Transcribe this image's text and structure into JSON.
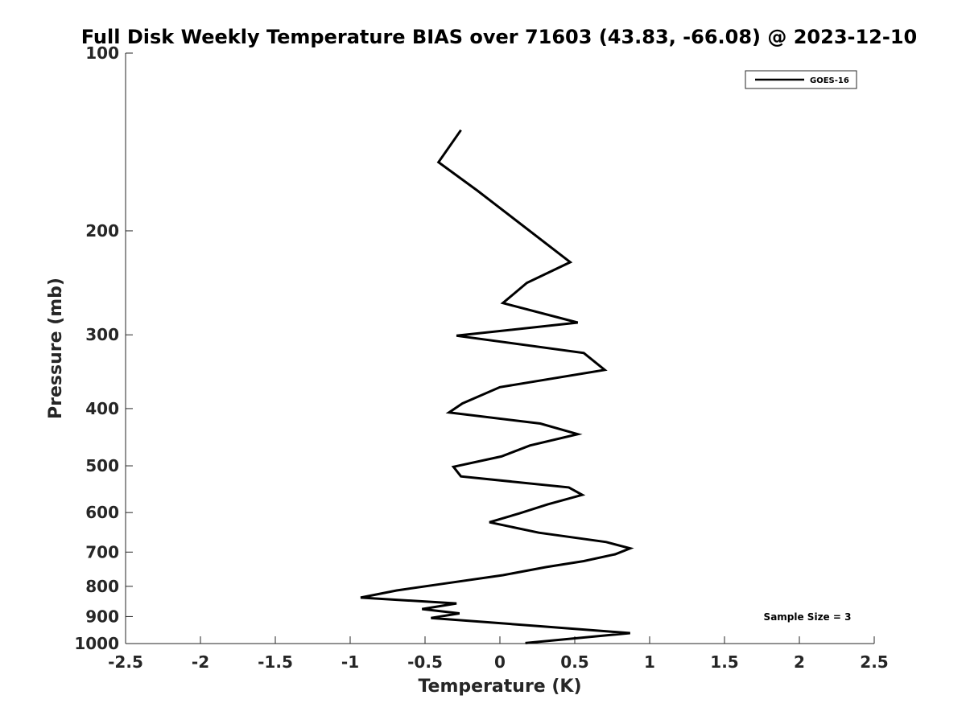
{
  "chart_data": {
    "type": "line",
    "title": "Full Disk Weekly Temperature BIAS over 71603 (43.83, -66.08) @ 2023-12-10",
    "xlabel": "Temperature (K)",
    "ylabel": "Pressure (mb)",
    "xlim": [
      -2.5,
      2.5
    ],
    "ylim": [
      100,
      1000
    ],
    "y_scale": "log",
    "y_direction": "reversed",
    "grid": false,
    "legend_position": "top-right",
    "x_ticks": [
      -2.5,
      -2,
      -1.5,
      -1,
      -0.5,
      0,
      0.5,
      1,
      1.5,
      2,
      2.5
    ],
    "x_tick_labels": [
      "-2.5",
      "-2",
      "-1.5",
      "-1",
      "-0.5",
      "0",
      "0.5",
      "1",
      "1.5",
      "2",
      "2.5"
    ],
    "y_ticks": [
      100,
      200,
      300,
      400,
      500,
      600,
      700,
      800,
      900,
      1000
    ],
    "y_tick_labels": [
      "100",
      "200",
      "300",
      "400",
      "500",
      "600",
      "700",
      "800",
      "900",
      "1000"
    ],
    "annotation": "Sample Size = 3",
    "series": [
      {
        "name": "GOES-16",
        "color": "#000000",
        "points": [
          {
            "x": -0.26,
            "y": 135
          },
          {
            "x": -0.41,
            "y": 153
          },
          {
            "x": -0.15,
            "y": 171
          },
          {
            "x": 0.47,
            "y": 226
          },
          {
            "x": 0.18,
            "y": 245
          },
          {
            "x": 0.02,
            "y": 265
          },
          {
            "x": 0.52,
            "y": 286
          },
          {
            "x": -0.29,
            "y": 301
          },
          {
            "x": 0.56,
            "y": 322
          },
          {
            "x": 0.7,
            "y": 344
          },
          {
            "x": 0.0,
            "y": 368
          },
          {
            "x": -0.25,
            "y": 392
          },
          {
            "x": -0.34,
            "y": 406
          },
          {
            "x": 0.27,
            "y": 424
          },
          {
            "x": 0.52,
            "y": 442
          },
          {
            "x": 0.2,
            "y": 462
          },
          {
            "x": 0.01,
            "y": 482
          },
          {
            "x": -0.31,
            "y": 502
          },
          {
            "x": -0.26,
            "y": 521
          },
          {
            "x": 0.46,
            "y": 544
          },
          {
            "x": 0.55,
            "y": 560
          },
          {
            "x": 0.32,
            "y": 581
          },
          {
            "x": 0.13,
            "y": 602
          },
          {
            "x": -0.07,
            "y": 623
          },
          {
            "x": 0.26,
            "y": 649
          },
          {
            "x": 0.71,
            "y": 673
          },
          {
            "x": 0.87,
            "y": 690
          },
          {
            "x": 0.77,
            "y": 706
          },
          {
            "x": 0.56,
            "y": 725
          },
          {
            "x": 0.31,
            "y": 742
          },
          {
            "x": 0.02,
            "y": 766
          },
          {
            "x": -0.38,
            "y": 792
          },
          {
            "x": -0.69,
            "y": 813
          },
          {
            "x": -0.93,
            "y": 836
          },
          {
            "x": -0.29,
            "y": 855
          },
          {
            "x": -0.52,
            "y": 874
          },
          {
            "x": -0.27,
            "y": 889
          },
          {
            "x": -0.46,
            "y": 905
          },
          {
            "x": 0.28,
            "y": 935
          },
          {
            "x": 0.87,
            "y": 960
          },
          {
            "x": 0.17,
            "y": 998
          }
        ]
      }
    ]
  }
}
